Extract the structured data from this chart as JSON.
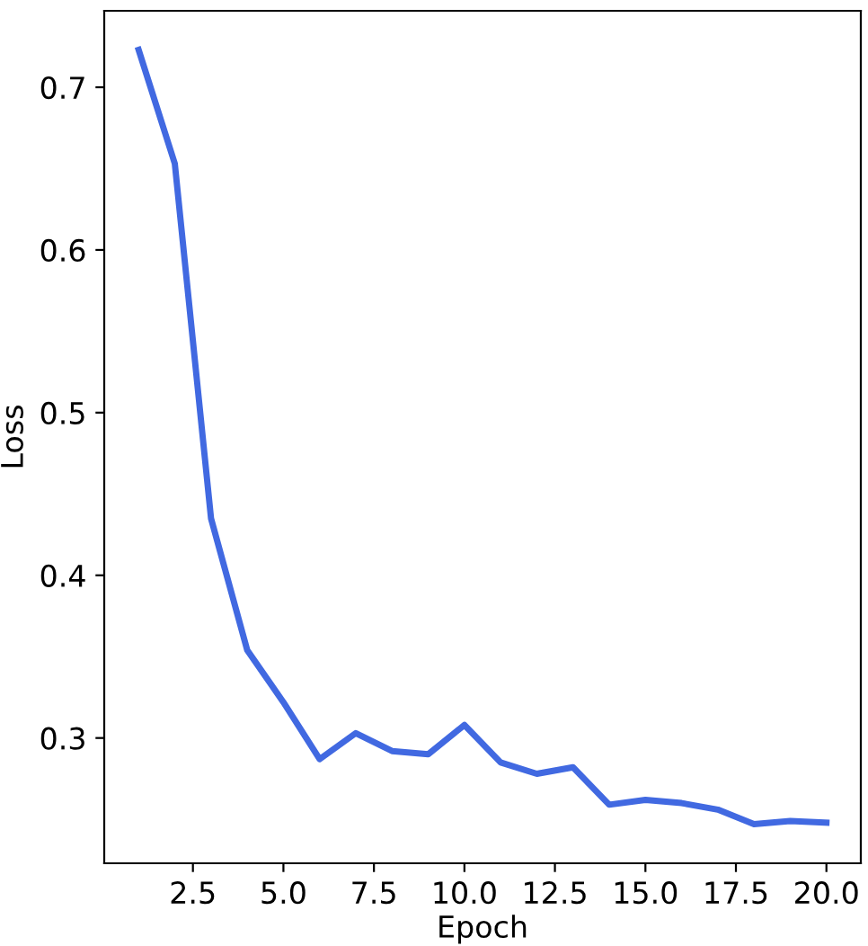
{
  "chart_data": {
    "type": "line",
    "xlabel": "Epoch",
    "ylabel": "Loss",
    "x": [
      1,
      2,
      3,
      4,
      5,
      6,
      7,
      8,
      9,
      10,
      11,
      12,
      13,
      14,
      15,
      16,
      17,
      18,
      19,
      20
    ],
    "series": [
      {
        "color": "#4169e1",
        "values": [
          0.723,
          0.653,
          0.435,
          0.354,
          0.322,
          0.287,
          0.303,
          0.292,
          0.29,
          0.308,
          0.285,
          0.278,
          0.282,
          0.259,
          0.262,
          0.26,
          0.256,
          0.247,
          0.249,
          0.248
        ]
      }
    ],
    "xlim": [
      0.05,
      20.95
    ],
    "ylim": [
      0.223,
      0.747
    ],
    "xticks": [
      {
        "value": 2.5,
        "label": "2.5"
      },
      {
        "value": 5,
        "label": "5.0"
      },
      {
        "value": 7.5,
        "label": "7.5"
      },
      {
        "value": 10,
        "label": "10.0"
      },
      {
        "value": 12.5,
        "label": "12.5"
      },
      {
        "value": 15,
        "label": "15.0"
      },
      {
        "value": 17.5,
        "label": "17.5"
      },
      {
        "value": 20,
        "label": "20.0"
      }
    ],
    "yticks": [
      0.3,
      0.4,
      0.5,
      0.6,
      0.7
    ],
    "grid": false,
    "marker": "none",
    "line_style": "solid"
  }
}
